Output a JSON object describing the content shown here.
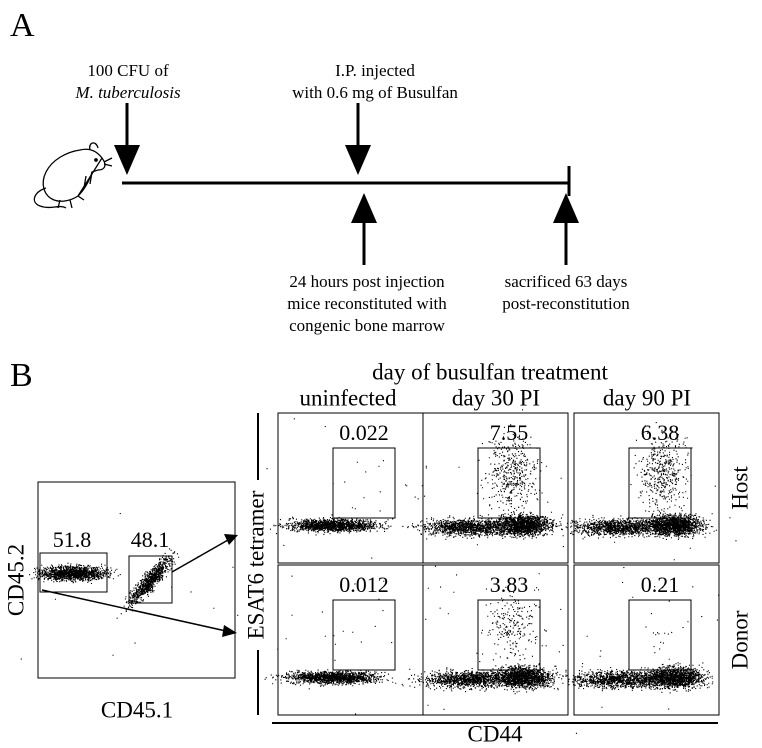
{
  "panel_a": {
    "label": "A",
    "top_annotations": [
      [
        "100 CFU of",
        "M. tuberculosis"
      ],
      [
        "I.P. injected",
        "with 0.6 mg of Busulfan"
      ]
    ],
    "bottom_annotations": [
      [
        "24 hours post injection",
        "mice reconstituted with",
        "congenic bone marrow"
      ],
      [
        "sacrificed 63 days",
        "post-reconstitution"
      ]
    ]
  },
  "panel_b": {
    "label": "B",
    "gating_plot": {
      "y_label": "CD45.2",
      "x_label": "CD45.1",
      "gates": [
        51.8,
        48.1
      ]
    },
    "title": "day of busulfan treatment",
    "columns": [
      "uninfected",
      "day 30 PI",
      "day 90 PI"
    ],
    "rows": [
      "Host",
      "Donor"
    ],
    "y_label": "ESAT6 tetramer",
    "x_label": "CD44",
    "gate_values": [
      [
        0.022,
        7.55,
        6.38
      ],
      [
        0.012,
        3.83,
        0.21
      ]
    ]
  }
}
